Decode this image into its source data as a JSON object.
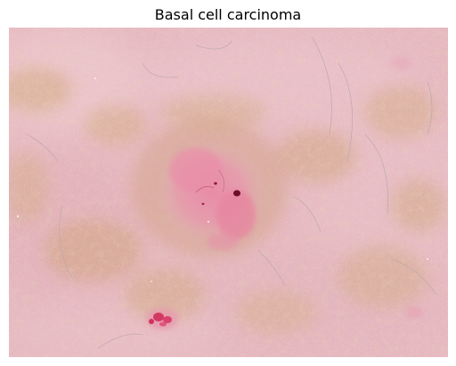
{
  "figure": {
    "title": "Basal cell carcinoma"
  },
  "image": {
    "subject": "dermoscopy-skin-lesion",
    "colors": {
      "skin_base": "#e3b1b9",
      "skin_light": "#edc6cc",
      "pigment_network": "#c89a6a",
      "lesion_pink": "#e98aa6",
      "lesion_red": "#d33862",
      "dark_spot": "#6b0f2a"
    }
  }
}
